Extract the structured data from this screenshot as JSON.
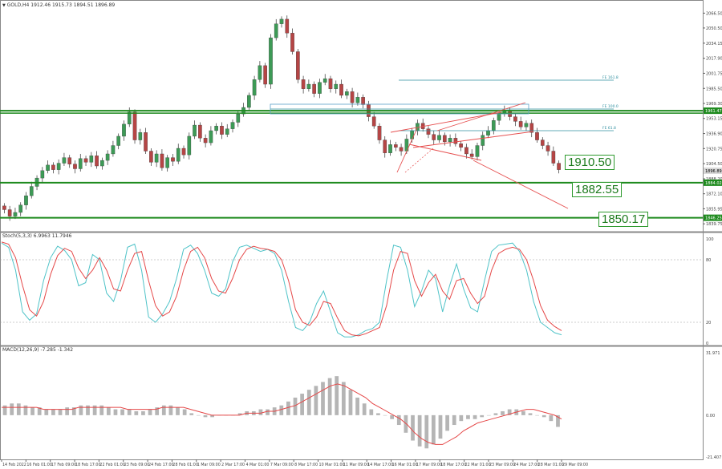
{
  "header": {
    "title": "GOLD,H4  1912.46 1915.73 1894.51 1896.89",
    "stoch_title": "Stoch(5,3,3) 6.9963 11.7946",
    "macd_title": "MACD(12,26,9) -7.285 -1.342"
  },
  "price_axis": {
    "ticks": [
      "2066.50",
      "2050.50",
      "2034.15",
      "2017.90",
      "2001.75",
      "1985.50",
      "1969.30",
      "1953.15",
      "1936.90",
      "1920.75",
      "1904.50",
      "1888.20",
      "1872.10",
      "1855.95",
      "1839.75"
    ],
    "current": "1896.89",
    "levels_tags": [
      "1961.47",
      "1884.02",
      "1846.25"
    ]
  },
  "stoch_axis": {
    "ticks": [
      "100",
      "80",
      "20",
      "0"
    ]
  },
  "macd_axis": {
    "ticks": [
      "31.971",
      "0.00",
      "-21.407"
    ]
  },
  "time_axis": {
    "labels": [
      "14 Feb 2022",
      "16 Feb 01:00",
      "17 Feb 09:00",
      "18 Feb 17:00",
      "22 Feb 01:00",
      "23 Feb 09:00",
      "24 Feb 17:00",
      "28 Feb 01:00",
      "1 Mar 09:00",
      "2 Mar 17:00",
      "4 Mar 01:00",
      "7 Mar 09:00",
      "8 Mar 17:00",
      "10 Mar 01:00",
      "11 Mar 09:00",
      "14 Mar 17:00",
      "16 Mar 01:00",
      "17 Mar 09:00",
      "18 Mar 17:00",
      "22 Mar 01:00",
      "23 Mar 09:00",
      "24 Mar 17:00",
      "28 Mar 01:00",
      "29 Mar 09:00"
    ]
  },
  "annotations": {
    "fib_labels": [
      "FE 161.8",
      "FE 100.0",
      "FE 61.8"
    ],
    "level_boxes": [
      "1910.50",
      "1882.55",
      "1850.17"
    ]
  },
  "chart_data": {
    "type": "candlestick",
    "symbol": "GOLD",
    "timeframe": "H4",
    "ylim": [
      1833,
      2072
    ],
    "horizontal_levels": [
      1961.47,
      1884.02,
      1846.25
    ],
    "close_path": [
      1855,
      1848,
      1852,
      1860,
      1870,
      1880,
      1889,
      1897,
      1903,
      1898,
      1905,
      1911,
      1904,
      1899,
      1910,
      1906,
      1913,
      1902,
      1908,
      1915,
      1924,
      1934,
      1947,
      1960,
      1930,
      1938,
      1918,
      1906,
      1915,
      1900,
      1911,
      1907,
      1921,
      1914,
      1934,
      1946,
      1932,
      1927,
      1940,
      1945,
      1936,
      1942,
      1949,
      1958,
      1965,
      1978,
      1995,
      2010,
      1990,
      2040,
      2055,
      2060,
      2045,
      2025,
      1995,
      1985,
      1990,
      1980,
      1992,
      1996,
      1985,
      1990,
      1978,
      1982,
      1970,
      1976,
      1968,
      1955,
      1945,
      1930,
      1916,
      1925,
      1922,
      1918,
      1931,
      1940,
      1948,
      1942,
      1936,
      1930,
      1935,
      1928,
      1932,
      1926,
      1922,
      1915,
      1912,
      1924,
      1935,
      1940,
      1951,
      1958,
      1962,
      1955,
      1950,
      1944,
      1948,
      1938,
      1930,
      1924,
      1918,
      1905,
      1898
    ],
    "stochastic": {
      "params": "5,3,3",
      "main": 6.9963,
      "signal": 11.7946,
      "levels": [
        80,
        20
      ],
      "k": [
        96,
        92,
        70,
        30,
        22,
        28,
        60,
        82,
        93,
        89,
        80,
        55,
        58,
        85,
        80,
        48,
        40,
        60,
        92,
        95,
        70,
        25,
        20,
        28,
        40,
        62,
        90,
        94,
        86,
        70,
        48,
        45,
        52,
        78,
        92,
        94,
        91,
        88,
        90,
        86,
        70,
        40,
        15,
        12,
        20,
        38,
        50,
        30,
        10,
        6,
        6,
        8,
        12,
        14,
        20,
        60,
        94,
        92,
        70,
        35,
        50,
        70,
        62,
        30,
        55,
        76,
        52,
        34,
        30,
        60,
        88,
        94,
        95,
        96,
        88,
        70,
        40,
        20,
        15,
        10,
        8
      ],
      "d": [
        97,
        95,
        82,
        55,
        32,
        26,
        40,
        66,
        84,
        91,
        88,
        72,
        62,
        70,
        82,
        70,
        52,
        50,
        70,
        86,
        88,
        60,
        36,
        26,
        30,
        45,
        70,
        88,
        92,
        82,
        62,
        50,
        48,
        62,
        80,
        90,
        93,
        91,
        90,
        88,
        80,
        60,
        32,
        20,
        17,
        25,
        40,
        38,
        24,
        12,
        8,
        7,
        9,
        12,
        15,
        36,
        70,
        88,
        86,
        60,
        45,
        58,
        66,
        50,
        42,
        60,
        62,
        48,
        38,
        45,
        70,
        86,
        90,
        92,
        90,
        80,
        60,
        36,
        22,
        16,
        12
      ]
    },
    "macd": {
      "params": "12,26,9",
      "main": -7.285,
      "signal": [
        4,
        4,
        4,
        4,
        4,
        4,
        3,
        3,
        3,
        3,
        3,
        4,
        4,
        4,
        4,
        4,
        4,
        4,
        3,
        3,
        3,
        3,
        3,
        4,
        4,
        4,
        4,
        3,
        2,
        1,
        0,
        0,
        0,
        0,
        0,
        1,
        1,
        1,
        2,
        2,
        3,
        4,
        5,
        7,
        9,
        11,
        13,
        15,
        16,
        15,
        13,
        11,
        9,
        6,
        4,
        2,
        0,
        -2,
        -5,
        -9,
        -12,
        -14,
        -15,
        -15,
        -13,
        -11,
        -8,
        -6,
        -4,
        -3,
        -2,
        -1,
        0,
        1,
        2,
        3,
        3,
        2,
        1,
        0,
        -2
      ],
      "ylim": [
        -21.407,
        31.971
      ],
      "hist": [
        5,
        6,
        6,
        5,
        4,
        4,
        3,
        3,
        3,
        4,
        4,
        5,
        5,
        5,
        5,
        4,
        3,
        3,
        3,
        2,
        2,
        3,
        4,
        5,
        5,
        4,
        3,
        1,
        0,
        -1,
        -1,
        0,
        0,
        0,
        1,
        2,
        2,
        3,
        3,
        4,
        5,
        7,
        9,
        11,
        13,
        15,
        17,
        19,
        20,
        17,
        13,
        9,
        6,
        3,
        1,
        0,
        -2,
        -5,
        -9,
        -13,
        -16,
        -17,
        -15,
        -12,
        -8,
        -5,
        -3,
        -2,
        -2,
        -1,
        0,
        1,
        2,
        3,
        3,
        2,
        1,
        0,
        -1,
        -3,
        -6
      ]
    }
  }
}
